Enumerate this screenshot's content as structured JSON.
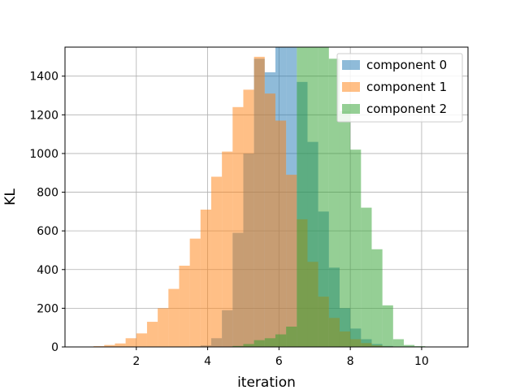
{
  "chart_data": {
    "type": "histogram",
    "title": "",
    "xlabel": "iteration",
    "ylabel": "KL",
    "xlim": [
      0.0,
      11.3
    ],
    "ylim": [
      0,
      1550
    ],
    "xticks": [
      2,
      4,
      6,
      8,
      10
    ],
    "yticks": [
      0,
      200,
      400,
      600,
      800,
      1000,
      1200,
      1400
    ],
    "grid": true,
    "legend_position": "top-right",
    "series": [
      {
        "name": "component 0",
        "color": "#1f77b4",
        "alpha": 0.5,
        "bins": [
          [
            3.5,
            3.8,
            3
          ],
          [
            3.8,
            4.1,
            8
          ],
          [
            4.1,
            4.4,
            45
          ],
          [
            4.4,
            4.7,
            190
          ],
          [
            4.7,
            5.0,
            590
          ],
          [
            5.0,
            5.3,
            1000
          ],
          [
            5.3,
            5.6,
            1490
          ],
          [
            5.6,
            5.9,
            1420
          ],
          [
            5.9,
            6.2,
            1640
          ],
          [
            6.2,
            6.5,
            1580
          ],
          [
            6.5,
            6.8,
            1370
          ],
          [
            6.8,
            7.1,
            1060
          ],
          [
            7.1,
            7.4,
            700
          ],
          [
            7.4,
            7.7,
            410
          ],
          [
            7.7,
            8.0,
            200
          ],
          [
            8.0,
            8.3,
            95
          ],
          [
            8.3,
            8.6,
            40
          ],
          [
            8.6,
            8.9,
            15
          ],
          [
            8.9,
            9.2,
            5
          ],
          [
            9.2,
            9.5,
            2
          ],
          [
            9.5,
            9.8,
            1
          ],
          [
            10.1,
            10.4,
            1
          ],
          [
            10.4,
            10.7,
            1
          ]
        ]
      },
      {
        "name": "component 1",
        "color": "#ff7f0e",
        "alpha": 0.5,
        "bins": [
          [
            0.8,
            1.1,
            4
          ],
          [
            1.1,
            1.4,
            10
          ],
          [
            1.4,
            1.7,
            18
          ],
          [
            1.7,
            2.0,
            45
          ],
          [
            2.0,
            2.3,
            70
          ],
          [
            2.3,
            2.6,
            130
          ],
          [
            2.6,
            2.9,
            200
          ],
          [
            2.9,
            3.2,
            300
          ],
          [
            3.2,
            3.5,
            420
          ],
          [
            3.5,
            3.8,
            560
          ],
          [
            3.8,
            4.1,
            710
          ],
          [
            4.1,
            4.4,
            880
          ],
          [
            4.4,
            4.7,
            1010
          ],
          [
            4.7,
            5.0,
            1240
          ],
          [
            5.0,
            5.3,
            1330
          ],
          [
            5.3,
            5.6,
            1500
          ],
          [
            5.6,
            5.9,
            1310
          ],
          [
            5.9,
            6.2,
            1170
          ],
          [
            6.2,
            6.5,
            890
          ],
          [
            6.5,
            6.8,
            660
          ],
          [
            6.8,
            7.1,
            440
          ],
          [
            7.1,
            7.4,
            260
          ],
          [
            7.4,
            7.7,
            150
          ],
          [
            7.7,
            8.0,
            80
          ],
          [
            8.0,
            8.3,
            40
          ],
          [
            8.3,
            8.6,
            20
          ],
          [
            8.6,
            8.9,
            8
          ],
          [
            8.9,
            9.2,
            3
          ]
        ]
      },
      {
        "name": "component 2",
        "color": "#2ca02c",
        "alpha": 0.5,
        "bins": [
          [
            4.7,
            5.0,
            5
          ],
          [
            5.0,
            5.3,
            15
          ],
          [
            5.3,
            5.6,
            35
          ],
          [
            5.6,
            5.9,
            45
          ],
          [
            5.9,
            6.2,
            65
          ],
          [
            6.2,
            6.5,
            105
          ],
          [
            6.5,
            6.8,
            1610
          ],
          [
            6.8,
            7.1,
            1720
          ],
          [
            7.1,
            7.4,
            1920
          ],
          [
            7.4,
            7.7,
            1490
          ],
          [
            7.7,
            8.0,
            1220
          ],
          [
            8.0,
            8.3,
            1020
          ],
          [
            8.3,
            8.6,
            720
          ],
          [
            8.6,
            8.9,
            505
          ],
          [
            8.9,
            9.2,
            215
          ],
          [
            9.2,
            9.5,
            40
          ],
          [
            9.5,
            9.8,
            10
          ],
          [
            9.8,
            10.1,
            4
          ]
        ]
      }
    ]
  }
}
